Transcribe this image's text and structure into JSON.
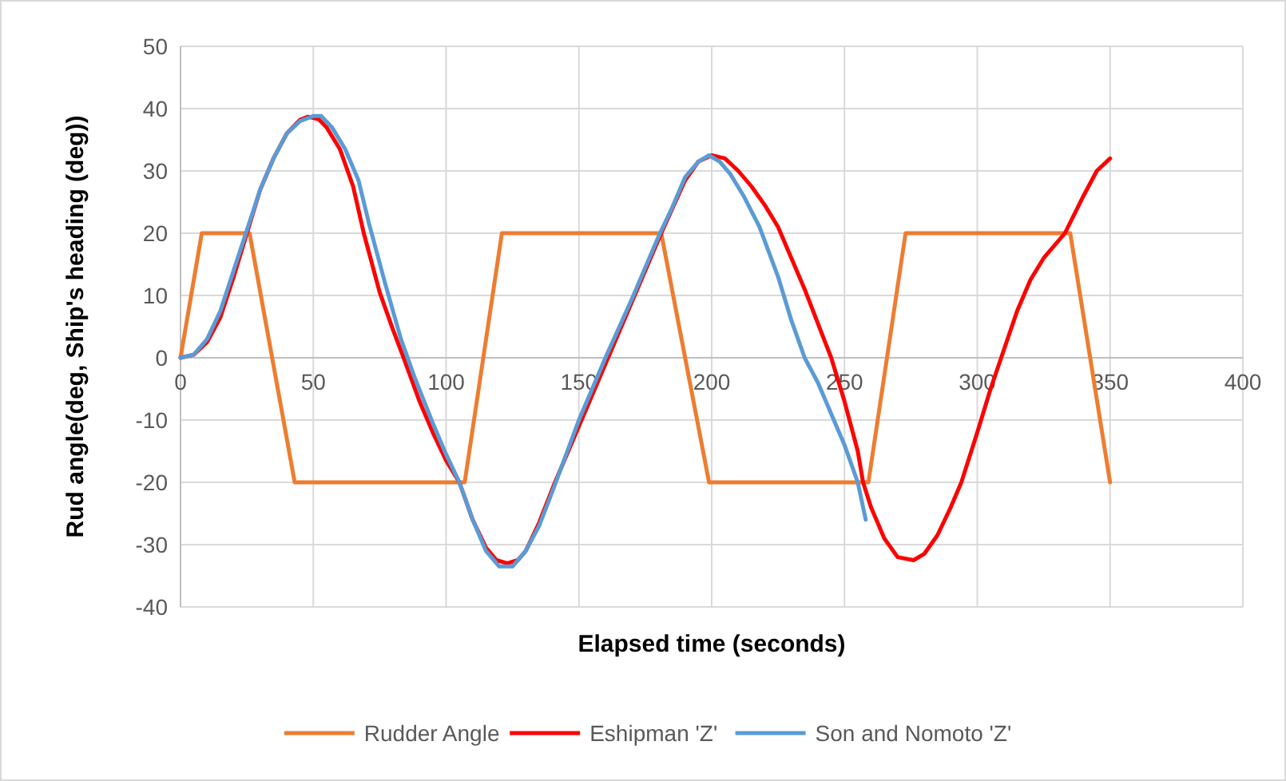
{
  "chart_data": {
    "type": "line",
    "xlabel": "Elapsed  time (seconds)",
    "ylabel": "Rud angle(deg, Ship's heading (deg))",
    "xlim": [
      0,
      400
    ],
    "xticks": [
      0,
      50,
      100,
      150,
      200,
      250,
      300,
      350,
      400
    ],
    "ylim": [
      -40,
      50
    ],
    "yticks": [
      -40,
      -30,
      -20,
      -10,
      0,
      10,
      20,
      30,
      40,
      50
    ],
    "grid": true,
    "legend": "bottom",
    "series": [
      {
        "name": "Rudder Angle",
        "color": "#ed7d31",
        "x": [
          0,
          8,
          26,
          43,
          107,
          121,
          181,
          199,
          259,
          273,
          335,
          350
        ],
        "values": [
          0,
          20,
          20,
          -20,
          -20,
          20,
          20,
          -20,
          -20,
          20,
          20,
          -20
        ]
      },
      {
        "name": "Eshipman 'Z'",
        "color": "#ff0000",
        "x": [
          0,
          5,
          10,
          15,
          20,
          25,
          30,
          35,
          40,
          45,
          48,
          52,
          55,
          60,
          65,
          69,
          75,
          80,
          84,
          90,
          95,
          100,
          105,
          110,
          115,
          119,
          123,
          127,
          130,
          135,
          141,
          150,
          160,
          170,
          181,
          190,
          195,
          200,
          205,
          210,
          215,
          220,
          225,
          230,
          235,
          240,
          245,
          250,
          255,
          257,
          260,
          265,
          270,
          276,
          280,
          285,
          290,
          294,
          300,
          305,
          309,
          315,
          320,
          325,
          333,
          340,
          345,
          350
        ],
        "values": [
          0,
          0.5,
          2.5,
          6.5,
          13,
          20,
          27,
          32,
          36,
          38.2,
          38.7,
          38.3,
          37,
          33.5,
          27.5,
          20,
          10.5,
          4.5,
          0,
          -7,
          -12,
          -16.5,
          -20,
          -26,
          -30.5,
          -32.5,
          -33,
          -32.5,
          -31,
          -26.5,
          -20,
          -11,
          -1,
          9,
          20,
          28.5,
          31.5,
          32.5,
          32,
          30,
          27.5,
          24.5,
          21,
          16,
          11,
          5.5,
          0,
          -7,
          -15,
          -20,
          -24,
          -29,
          -32,
          -32.5,
          -31.5,
          -28.5,
          -24,
          -20,
          -12,
          -5,
          0,
          7.5,
          12.5,
          16,
          20,
          26,
          30,
          32
        ]
      },
      {
        "name": "Son and Nomoto 'Z'",
        "color": "#5b9bd5",
        "x": [
          0,
          5,
          10,
          15,
          20,
          25,
          30,
          35,
          40,
          45,
          50,
          53,
          57,
          62,
          67,
          71,
          77,
          83,
          88,
          95,
          100,
          105,
          110,
          115,
          120,
          125,
          130,
          135,
          140,
          150,
          160,
          170,
          180,
          185,
          190,
          195,
          199,
          203,
          207,
          212,
          218,
          225,
          230,
          235,
          240,
          245,
          250,
          255,
          258
        ],
        "values": [
          0,
          0.5,
          3,
          7.5,
          14,
          20.5,
          27,
          32,
          36,
          38,
          38.8,
          38.8,
          37,
          33.5,
          28.5,
          21.5,
          12,
          3,
          -3,
          -10.5,
          -15.5,
          -20,
          -26,
          -31,
          -33.5,
          -33.5,
          -31,
          -27,
          -21.5,
          -10,
          0,
          9.5,
          19.5,
          24,
          29,
          31.5,
          32.5,
          31.5,
          29.5,
          26,
          21,
          13,
          6,
          0,
          -4,
          -9,
          -14,
          -20,
          -26
        ]
      }
    ]
  }
}
